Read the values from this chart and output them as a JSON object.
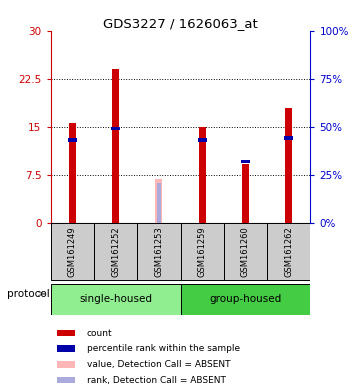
{
  "title": "GDS3227 / 1626063_at",
  "samples": [
    "GSM161249",
    "GSM161252",
    "GSM161253",
    "GSM161259",
    "GSM161260",
    "GSM161262"
  ],
  "red_values": [
    15.6,
    24.0,
    0.0,
    15.0,
    9.2,
    18.0
  ],
  "blue_pct": [
    43.0,
    49.0,
    0.0,
    43.0,
    32.0,
    44.0
  ],
  "pink_value": [
    0.0,
    0.0,
    6.8,
    0.0,
    0.0,
    0.0
  ],
  "lavender_value": [
    0.0,
    0.0,
    6.2,
    0.0,
    0.0,
    0.0
  ],
  "ylim_left": [
    0,
    30
  ],
  "ylim_right": [
    0,
    100
  ],
  "yticks_left": [
    0,
    7.5,
    15,
    22.5,
    30
  ],
  "yticks_right": [
    0,
    25,
    50,
    75,
    100
  ],
  "ytick_labels_left": [
    "0",
    "7.5",
    "15",
    "22.5",
    "30"
  ],
  "ytick_labels_right": [
    "0%",
    "25%",
    "50%",
    "75%",
    "100%"
  ],
  "left_axis_color": "#CC0000",
  "right_axis_color": "#0000CC",
  "red_color": "#CC0000",
  "blue_color": "#0000AA",
  "pink_color": "#FFB6B6",
  "lavender_color": "#AAAADD",
  "group_color_1": "#90EE90",
  "group_color_2": "#44CC44",
  "sample_box_color": "#CCCCCC",
  "protocol_label": "protocol",
  "group1_label": "single-housed",
  "group2_label": "group-housed",
  "legend_items": [
    {
      "color": "#CC0000",
      "label": "count"
    },
    {
      "color": "#0000AA",
      "label": "percentile rank within the sample"
    },
    {
      "color": "#FFB6B6",
      "label": "value, Detection Call = ABSENT"
    },
    {
      "color": "#AAAADD",
      "label": "rank, Detection Call = ABSENT"
    }
  ],
  "dotted_lines": [
    7.5,
    15.0,
    22.5
  ],
  "bar_width": 0.45
}
